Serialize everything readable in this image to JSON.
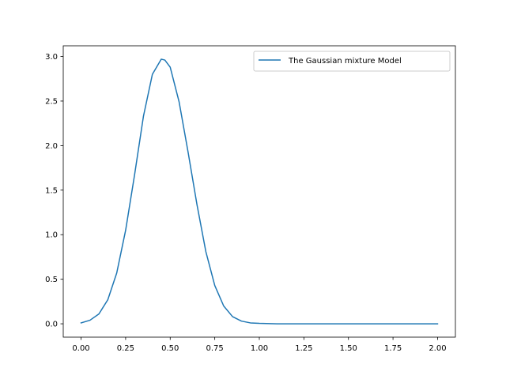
{
  "chart_data": {
    "type": "line",
    "title": "",
    "xlabel": "",
    "ylabel": "",
    "xlim": [
      -0.1,
      2.1
    ],
    "ylim": [
      -0.15,
      3.12
    ],
    "x_ticks": [
      0.0,
      0.25,
      0.5,
      0.75,
      1.0,
      1.25,
      1.5,
      1.75,
      2.0
    ],
    "x_tick_labels": [
      "0.00",
      "0.25",
      "0.50",
      "0.75",
      "1.00",
      "1.25",
      "1.50",
      "1.75",
      "2.00"
    ],
    "y_ticks": [
      0.0,
      0.5,
      1.0,
      1.5,
      2.0,
      2.5,
      3.0
    ],
    "y_tick_labels": [
      "0.0",
      "0.5",
      "1.0",
      "1.5",
      "2.0",
      "2.5",
      "3.0"
    ],
    "grid": false,
    "legend": "upper right",
    "series": [
      {
        "name": "The Gaussian mixture Model",
        "color": "#1f77b4",
        "x": [
          0.0,
          0.05,
          0.1,
          0.15,
          0.2,
          0.25,
          0.3,
          0.35,
          0.4,
          0.45,
          0.47,
          0.5,
          0.55,
          0.6,
          0.65,
          0.7,
          0.75,
          0.8,
          0.85,
          0.9,
          0.95,
          1.0,
          1.1,
          1.2,
          1.3,
          1.4,
          1.5,
          1.6,
          1.7,
          1.8,
          1.9,
          2.0
        ],
        "y": [
          0.01,
          0.04,
          0.11,
          0.27,
          0.57,
          1.05,
          1.67,
          2.33,
          2.8,
          2.97,
          2.96,
          2.88,
          2.49,
          1.93,
          1.34,
          0.81,
          0.43,
          0.2,
          0.08,
          0.03,
          0.01,
          0.005,
          0.0,
          0.0,
          0.0,
          0.0,
          0.0,
          0.0,
          0.0,
          0.0,
          0.0,
          0.0
        ]
      }
    ]
  }
}
